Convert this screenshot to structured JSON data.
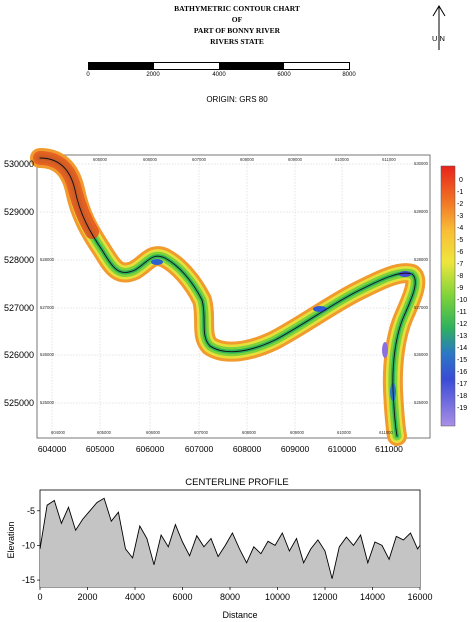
{
  "title_lines": [
    "BATHYMETRIC CONTOUR CHART",
    "OF",
    "PART OF BONNY RIVER",
    "RIVERS STATE"
  ],
  "north_arrow": {
    "label": "U N"
  },
  "scale_bar": {
    "labels": [
      "0",
      "2000",
      "4000",
      "6000",
      "8000"
    ]
  },
  "origin_label": "ORIGIN: GRS 80",
  "map": {
    "left_ticks": [
      "530000",
      "529000",
      "528000",
      "527000",
      "526000",
      "525000"
    ],
    "bottom_ticks": [
      "604000",
      "605000",
      "606000",
      "607000",
      "608000",
      "609000",
      "610000",
      "611000"
    ],
    "inner_top_ticks": [
      "605000",
      "606000",
      "607000",
      "608000",
      "609000",
      "610000",
      "611000"
    ],
    "inner_bottom_ticks": [
      "604000",
      "605000",
      "606000",
      "607000",
      "608000",
      "609000",
      "610000",
      "611000"
    ],
    "inner_left_ticks": [
      "528000",
      "527000",
      "526000",
      "525000"
    ],
    "inner_right_ticks": [
      "530000",
      "529000",
      "528000",
      "527000",
      "526000",
      "525000"
    ]
  },
  "legend": {
    "labels": [
      "0",
      "-1",
      "-2",
      "-3",
      "-4",
      "-5",
      "-6",
      "-7",
      "-8",
      "-9",
      "-10",
      "-11",
      "-12",
      "-13",
      "-14",
      "-15",
      "-16",
      "-17",
      "-18",
      "-19"
    ],
    "colors": [
      "#e8231b",
      "#ed4a1e",
      "#f06b23",
      "#f48a2a",
      "#f7a531",
      "#f9be38",
      "#f8d43c",
      "#eee63c",
      "#cfe739",
      "#a8de36",
      "#7ed33a",
      "#52c447",
      "#2fb25c",
      "#1f9c77",
      "#2b78c4",
      "#2f5ad6",
      "#4a47d8",
      "#6c4fdc",
      "#8c6fe0",
      "#a98fe6"
    ]
  },
  "chart_data": {
    "type": "area",
    "title": "CENTERLINE PROFILE",
    "xlabel": "Distance",
    "ylabel": "Elevation",
    "xlim": [
      0,
      16000
    ],
    "ylim": [
      -16,
      -2
    ],
    "xticks": [
      "0",
      "2000",
      "4000",
      "6000",
      "8000",
      "10000",
      "12000",
      "14000",
      "16000"
    ],
    "yticks": [
      "-5",
      "-10",
      "-15"
    ],
    "x": [
      0,
      300,
      600,
      900,
      1200,
      1500,
      1800,
      2100,
      2400,
      2700,
      3000,
      3300,
      3600,
      3900,
      4200,
      4500,
      4800,
      5100,
      5400,
      5700,
      6000,
      6300,
      6600,
      6900,
      7200,
      7500,
      7800,
      8100,
      8400,
      8700,
      9000,
      9300,
      9600,
      9900,
      10200,
      10500,
      10800,
      11100,
      11400,
      11700,
      12000,
      12300,
      12600,
      12900,
      13200,
      13500,
      13800,
      14100,
      14400,
      14700,
      15000,
      15300,
      15600,
      15900,
      16000
    ],
    "y": [
      -10.5,
      -4.2,
      -3.5,
      -6.8,
      -4.5,
      -7.8,
      -6.2,
      -5.0,
      -3.8,
      -3.2,
      -6.5,
      -5.2,
      -10.5,
      -11.8,
      -7.2,
      -9.0,
      -12.8,
      -8.5,
      -10.2,
      -7.0,
      -9.5,
      -11.5,
      -8.6,
      -10.2,
      -9.0,
      -11.6,
      -10.0,
      -8.2,
      -10.5,
      -12.5,
      -10.2,
      -11.2,
      -9.4,
      -10.0,
      -8.2,
      -10.8,
      -9.0,
      -12.5,
      -10.5,
      -9.2,
      -10.8,
      -14.8,
      -10.2,
      -8.8,
      -10.0,
      -8.5,
      -12.5,
      -9.5,
      -10.0,
      -12.0,
      -8.7,
      -9.2,
      -8.2,
      -10.5,
      -10.0
    ]
  }
}
